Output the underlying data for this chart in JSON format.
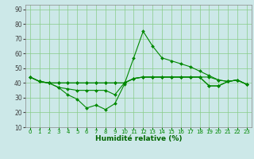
{
  "xlabel": "Humidité relative (%)",
  "bg_color": "#cce8e8",
  "grid_color": "#88cc88",
  "line_color": "#008800",
  "xlim": [
    -0.5,
    23.5
  ],
  "ylim": [
    10,
    93
  ],
  "yticks": [
    10,
    20,
    30,
    40,
    50,
    60,
    70,
    80,
    90
  ],
  "xticks": [
    0,
    1,
    2,
    3,
    4,
    5,
    6,
    7,
    8,
    9,
    10,
    11,
    12,
    13,
    14,
    15,
    16,
    17,
    18,
    19,
    20,
    21,
    22,
    23
  ],
  "y_main": [
    44,
    41,
    40,
    37,
    32,
    29,
    23,
    25,
    22,
    26,
    39,
    57,
    75,
    65,
    57,
    55,
    53,
    51,
    48,
    45,
    42,
    41,
    42,
    39
  ],
  "y_line2": [
    44,
    41,
    40,
    37,
    36,
    35,
    35,
    35,
    35,
    32,
    40,
    43,
    44,
    44,
    44,
    44,
    44,
    44,
    44,
    44,
    42,
    41,
    42,
    39
  ],
  "y_line3": [
    44,
    41,
    40,
    40,
    40,
    40,
    40,
    40,
    40,
    40,
    40,
    43,
    44,
    44,
    44,
    44,
    44,
    44,
    44,
    38,
    38,
    41,
    42,
    39
  ],
  "y_line4": [
    44,
    41,
    40,
    40,
    40,
    40,
    40,
    40,
    40,
    40,
    40,
    43,
    44,
    44,
    44,
    44,
    44,
    44,
    44,
    38,
    38,
    41,
    42,
    39
  ]
}
